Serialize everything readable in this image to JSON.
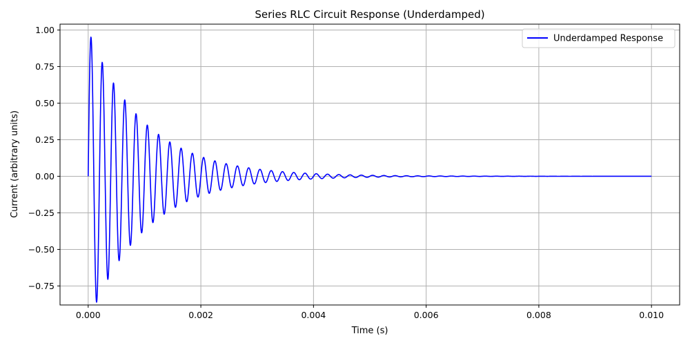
{
  "chart_data": {
    "type": "line",
    "title": "Series RLC Circuit Response (Underdamped)",
    "xlabel": "Time (s)",
    "ylabel": "Current (arbitrary units)",
    "xlim": [
      -0.0005,
      0.0105
    ],
    "ylim": [
      -0.88,
      1.04
    ],
    "xticks": [
      0.0,
      0.002,
      0.004,
      0.006,
      0.008,
      0.01
    ],
    "xtick_labels": [
      "0.000",
      "0.002",
      "0.004",
      "0.006",
      "0.008",
      "0.010"
    ],
    "yticks": [
      -0.75,
      -0.5,
      -0.25,
      0.0,
      0.25,
      0.5,
      0.75,
      1.0
    ],
    "ytick_labels": [
      "−0.75",
      "−0.50",
      "−0.25",
      "0.00",
      "0.25",
      "0.50",
      "0.75",
      "1.00"
    ],
    "grid": true,
    "legend_position": "top-right",
    "series": [
      {
        "name": "Underdamped Response",
        "color": "#0000ff",
        "function": "exp(-alpha*t)*sin(omega_d*t)",
        "alpha": 1000,
        "omega_d": 31416,
        "t_start": 0,
        "t_end": 0.01
      }
    ]
  }
}
